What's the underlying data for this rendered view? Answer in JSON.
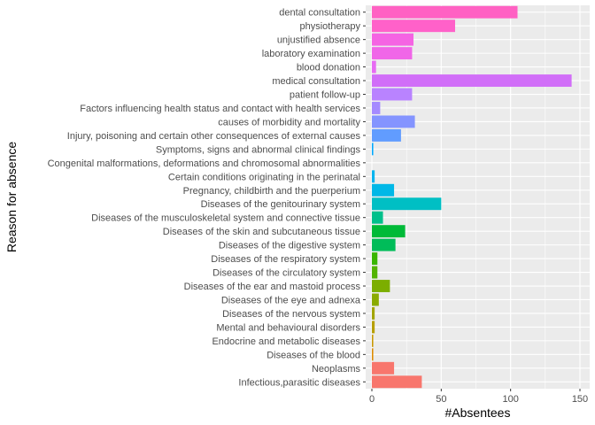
{
  "chart_data": {
    "type": "bar",
    "orientation": "horizontal",
    "xlabel": "#Absentees",
    "ylabel": "Reason for absence",
    "xlim": [
      0,
      150
    ],
    "xticks": [
      0,
      50,
      100,
      150
    ],
    "grid": true,
    "legend": "none",
    "categories": [
      "dental consultation",
      "physiotherapy",
      "unjustified absence",
      "laboratory examination",
      "blood donation",
      "medical consultation",
      "patient follow-up",
      "Factors influencing health status and contact with health services",
      "causes of morbidity and mortality",
      "Injury, poisoning and certain other consequences of external causes",
      "Symptoms, signs and abnormal clinical  findings",
      "Congenital malformations, deformations and chromosomal abnormalities",
      "Certain conditions originating in the perinatal",
      "Pregnancy, childbirth and the puerperium",
      "Diseases of the genitourinary system",
      "Diseases of the musculoskeletal system and connective tissue",
      "Diseases of the skin and subcutaneous tissue",
      "Diseases of the digestive system",
      "Diseases of the respiratory system",
      "Diseases of the circulatory system",
      "Diseases of the ear and mastoid process",
      "Diseases of the eye and adnexa",
      "Diseases of the nervous system",
      "Mental and behavioural disorders",
      "Endocrine and metabolic diseases",
      "Diseases of the blood",
      "Neoplasms",
      "Infectious,parasitic diseases"
    ],
    "values": [
      105,
      60,
      30,
      29,
      3,
      144,
      29,
      6,
      31,
      21,
      1,
      0,
      2,
      16,
      50,
      8,
      24,
      17,
      4,
      4,
      13,
      5,
      2,
      2,
      1,
      1,
      16,
      36
    ],
    "colors": [
      "#FF61C3",
      "#FF61C9",
      "#F564E3",
      "#F066E8",
      "#E76BF3",
      "#D16EF8",
      "#B983FF",
      "#A58AFF",
      "#8494FF",
      "#619CFF",
      "#00A9FF",
      "#00B0F6",
      "#00B4EF",
      "#00B8E7",
      "#00BFC4",
      "#00C08B",
      "#00BA38",
      "#00BC59",
      "#39B600",
      "#53B400",
      "#7CAE00",
      "#8AAB00",
      "#A3A500",
      "#B79F00",
      "#C99800",
      "#DE8C00",
      "#F8766D",
      "#F8766D"
    ],
    "panel_background": "#EBEBEB",
    "grid_color": "#FFFFFF"
  }
}
